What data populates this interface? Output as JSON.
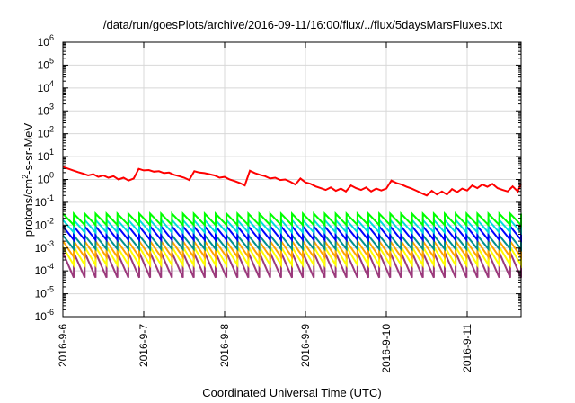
{
  "chart_data": {
    "type": "line",
    "title": "/data/run/goesPlots/archive/2016-09-11/16:00/flux/../flux/5daysMarsFluxes.txt",
    "xlabel": "Coordinated Universal Time (UTC)",
    "ylabel_parts": {
      "base": "protons/cm",
      "sup": "2",
      "rest": "-s-sr-MeV"
    },
    "yscale": "log",
    "ylim": [
      1e-06,
      1000000.0
    ],
    "y_ticks": [
      {
        "exp": "-6"
      },
      {
        "exp": "-5"
      },
      {
        "exp": "-4"
      },
      {
        "exp": "-3"
      },
      {
        "exp": "-2"
      },
      {
        "exp": "-1"
      },
      {
        "exp": "0"
      },
      {
        "exp": "1"
      },
      {
        "exp": "2"
      },
      {
        "exp": "3"
      },
      {
        "exp": "4"
      },
      {
        "exp": "5"
      },
      {
        "exp": "6"
      }
    ],
    "y_tick_base": "10",
    "x_tick_labels": [
      "2016-9-6",
      "2016-9-7",
      "2016-9-8",
      "2016-9-9",
      "2016-9-10",
      "2016-9-11"
    ],
    "x_range_days": [
      "2016-09-06",
      "2016-09-11T16:00"
    ],
    "grid": true,
    "series": [
      {
        "color": "#ff0000",
        "x": [
          "2016-09-06 00:00",
          "2016-09-06 01:30",
          "2016-09-06 03:00",
          "2016-09-06 04:30",
          "2016-09-06 06:00",
          "2016-09-06 07:30",
          "2016-09-06 09:00",
          "2016-09-06 10:30",
          "2016-09-06 12:00",
          "2016-09-06 13:30",
          "2016-09-06 15:00",
          "2016-09-06 16:30",
          "2016-09-06 18:00",
          "2016-09-06 19:30",
          "2016-09-06 21:00",
          "2016-09-06 22:30",
          "2016-09-07 00:00",
          "2016-09-07 01:30",
          "2016-09-07 03:00",
          "2016-09-07 04:30",
          "2016-09-07 06:00",
          "2016-09-07 07:30",
          "2016-09-07 09:00",
          "2016-09-07 10:30",
          "2016-09-07 12:00",
          "2016-09-07 13:30",
          "2016-09-07 15:00",
          "2016-09-07 16:30",
          "2016-09-07 18:00",
          "2016-09-07 19:30",
          "2016-09-07 21:00",
          "2016-09-07 22:30",
          "2016-09-08 00:00",
          "2016-09-08 01:30",
          "2016-09-08 03:00",
          "2016-09-08 04:30",
          "2016-09-08 06:00",
          "2016-09-08 07:30",
          "2016-09-08 09:00",
          "2016-09-08 10:30",
          "2016-09-08 12:00",
          "2016-09-08 13:30",
          "2016-09-08 15:00",
          "2016-09-08 16:30",
          "2016-09-08 18:00",
          "2016-09-08 19:30",
          "2016-09-08 21:00",
          "2016-09-08 22:30",
          "2016-09-09 00:00",
          "2016-09-09 01:30",
          "2016-09-09 03:00",
          "2016-09-09 04:30",
          "2016-09-09 06:00",
          "2016-09-09 07:30",
          "2016-09-09 09:00",
          "2016-09-09 10:30",
          "2016-09-09 12:00",
          "2016-09-09 13:30",
          "2016-09-09 15:00",
          "2016-09-09 16:30",
          "2016-09-09 18:00",
          "2016-09-09 19:30",
          "2016-09-09 21:00",
          "2016-09-09 22:30",
          "2016-09-10 00:00",
          "2016-09-10 01:30",
          "2016-09-10 03:00",
          "2016-09-10 04:30",
          "2016-09-10 06:00",
          "2016-09-10 07:30",
          "2016-09-10 09:00",
          "2016-09-10 10:30",
          "2016-09-10 12:00",
          "2016-09-10 13:30",
          "2016-09-10 15:00",
          "2016-09-10 16:30",
          "2016-09-10 18:00",
          "2016-09-10 19:30",
          "2016-09-10 21:00",
          "2016-09-10 22:30",
          "2016-09-11 00:00",
          "2016-09-11 01:30",
          "2016-09-11 03:00",
          "2016-09-11 04:30",
          "2016-09-11 06:00",
          "2016-09-11 07:30",
          "2016-09-11 09:00",
          "2016-09-11 10:30",
          "2016-09-11 12:00",
          "2016-09-11 13:30",
          "2016-09-11 15:00",
          "2016-09-11 16:00"
        ],
        "values": [
          3.6,
          3.0,
          2.5,
          2.1,
          1.8,
          1.5,
          1.7,
          1.3,
          1.5,
          1.2,
          1.4,
          1.0,
          1.2,
          0.9,
          1.1,
          2.9,
          2.5,
          2.6,
          2.2,
          2.3,
          1.9,
          2.0,
          1.6,
          1.4,
          1.2,
          0.95,
          2.3,
          2.0,
          1.9,
          1.7,
          1.5,
          1.2,
          1.3,
          1.0,
          0.85,
          0.7,
          0.55,
          2.4,
          1.9,
          1.6,
          1.4,
          1.1,
          1.2,
          0.95,
          1.0,
          0.8,
          0.6,
          1.1,
          0.75,
          0.65,
          0.5,
          0.42,
          0.35,
          0.45,
          0.32,
          0.4,
          0.3,
          0.55,
          0.42,
          0.35,
          0.45,
          0.3,
          0.4,
          0.33,
          0.4,
          0.9,
          0.7,
          0.6,
          0.48,
          0.4,
          0.32,
          0.25,
          0.2,
          0.32,
          0.22,
          0.3,
          0.22,
          0.38,
          0.28,
          0.4,
          0.33,
          0.55,
          0.42,
          0.6,
          0.48,
          0.65,
          0.42,
          0.35,
          0.3,
          0.5,
          0.3,
          0.65
        ]
      },
      {
        "color": "#00ff00",
        "base": 0.018,
        "amp": 0.5,
        "teeth": 42
      },
      {
        "color": "#00dddd",
        "base": 0.009,
        "amp": 0.55,
        "teeth": 42
      },
      {
        "color": "#0000ff",
        "base": 0.0045,
        "amp": 0.6,
        "teeth": 42
      },
      {
        "color": "#009090",
        "base": 0.0018,
        "amp": 0.6,
        "teeth": 42
      },
      {
        "color": "#ffa500",
        "base": 0.0009,
        "amp": 0.7,
        "teeth": 42
      },
      {
        "color": "#ffff00",
        "base": 0.00045,
        "amp": 0.8,
        "teeth": 42
      },
      {
        "color": "#9b3a7c",
        "base": 0.00018,
        "amp": 1.1,
        "teeth": 42
      }
    ]
  }
}
